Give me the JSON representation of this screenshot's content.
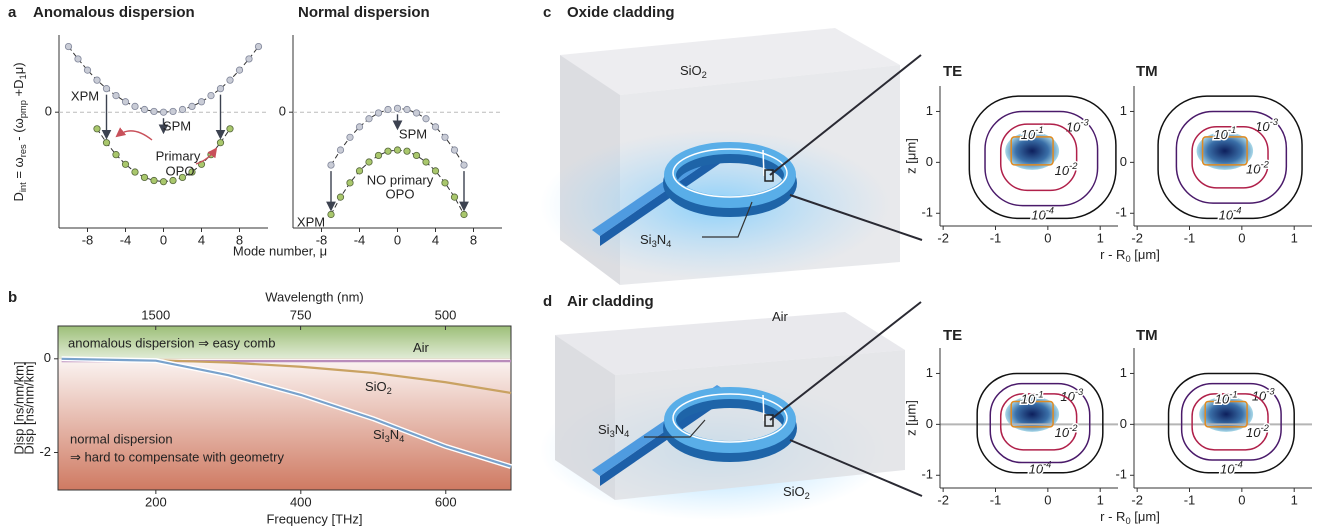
{
  "panel_letters": [
    "a",
    "b",
    "c",
    "d"
  ],
  "labels": {
    "mode_number": "Mode number, μ",
    "d_int": [
      "D",
      "int",
      " = ω",
      "res",
      " - (ω",
      "pmp",
      " +D",
      "1",
      "μ)"
    ],
    "r_axis_c": [
      "r - R",
      "0",
      " [μm]"
    ],
    "r_axis_d": [
      "r - R",
      "0",
      " [μm]"
    ]
  },
  "renders": [
    {
      "title": "Oxide cladding",
      "cladding": [
        "SiO",
        "2"
      ],
      "core": [
        "Si",
        "3",
        "N",
        "4"
      ]
    },
    {
      "title": "Air cladding",
      "cladding": [
        "Air"
      ],
      "core": [
        "Si",
        "3",
        "N",
        "4"
      ],
      "substrate": [
        "SiO",
        "2"
      ]
    }
  ],
  "chart_data": [
    {
      "type": "line",
      "title": "Anomalous dispersion",
      "xlim": [
        -11,
        11
      ],
      "xticks": [
        -8,
        -4,
        0,
        4,
        8
      ],
      "ylim": [
        -3,
        2
      ],
      "yticks": [
        0
      ],
      "grid": true,
      "series": [
        {
          "color": "#c9ccd6",
          "edge": "#80869a",
          "dashed": true,
          "markers": true,
          "x": [
            -10,
            -9,
            -8,
            -7,
            -6,
            -5,
            -4,
            -3,
            -2,
            -1,
            0,
            1,
            2,
            3,
            4,
            5,
            6,
            7,
            8,
            9,
            10
          ],
          "values": [
            1.7,
            1.38,
            1.09,
            0.83,
            0.61,
            0.43,
            0.27,
            0.15,
            0.07,
            0.02,
            0,
            0.02,
            0.07,
            0.15,
            0.27,
            0.43,
            0.61,
            0.83,
            1.09,
            1.38,
            1.7
          ]
        },
        {
          "color": "#a9c76c",
          "edge": "#55663c",
          "dashed": true,
          "markers": true,
          "x": [
            -7,
            -6,
            -5,
            -4,
            -3,
            -2,
            -1,
            0,
            1,
            2,
            3,
            4,
            5,
            6,
            7
          ],
          "values": [
            -0.43,
            -0.79,
            -1.1,
            -1.35,
            -1.55,
            -1.69,
            -1.77,
            -1.8,
            -1.77,
            -1.69,
            -1.55,
            -1.35,
            -1.1,
            -0.79,
            -0.43
          ]
        }
      ],
      "annotations": [
        "XPM",
        "SPM",
        "Primary",
        "OPO"
      ]
    },
    {
      "type": "line",
      "title": "Normal dispersion",
      "xlim": [
        -11,
        11
      ],
      "xticks": [
        -8,
        -4,
        0,
        4,
        8
      ],
      "ylim": [
        -3,
        2
      ],
      "yticks": [
        0
      ],
      "grid": true,
      "series": [
        {
          "color": "#c9ccd6",
          "edge": "#80869a",
          "dashed": true,
          "markers": true,
          "x": [
            -7,
            -6,
            -5,
            -4,
            -3,
            -2,
            -1,
            0,
            1,
            2,
            3,
            4,
            5,
            6,
            7
          ],
          "values": [
            -1.37,
            -0.98,
            -0.65,
            -0.38,
            -0.17,
            -0.02,
            0.07,
            0.1,
            0.07,
            -0.02,
            -0.17,
            -0.38,
            -0.65,
            -0.98,
            -1.37
          ]
        },
        {
          "color": "#a9c76c",
          "edge": "#55663c",
          "dashed": true,
          "markers": true,
          "x": [
            -7,
            -6,
            -5,
            -4,
            -3,
            -2,
            -1,
            0,
            1,
            2,
            3,
            4,
            5,
            6,
            7
          ],
          "values": [
            -2.65,
            -2.2,
            -1.83,
            -1.52,
            -1.29,
            -1.12,
            -1.01,
            -0.98,
            -1.01,
            -1.12,
            -1.29,
            -1.52,
            -1.83,
            -2.2,
            -2.65
          ]
        }
      ],
      "annotations": [
        "XPM",
        "SPM",
        "NO primary",
        "OPO"
      ]
    },
    {
      "type": "line",
      "x_label": "Frequency [THz]",
      "y_label": "Disp [ns/nm/km]",
      "top_label": "Wavelength (nm)",
      "top_ticks": [
        1500,
        750,
        500
      ],
      "xlim": [
        65,
        690
      ],
      "xticks": [
        200,
        400,
        600
      ],
      "ylim": [
        -2.8,
        0.7
      ],
      "yticks": [
        0,
        -2
      ],
      "frame": true,
      "anomalous_color": "#9dbf78",
      "normal_color": "#cf7a62",
      "series": [
        {
          "name": [
            "Air"
          ],
          "color": "#b98cbb",
          "x": [
            70,
            200,
            300,
            400,
            500,
            600,
            690
          ],
          "values": [
            -0.05,
            -0.05,
            -0.05,
            -0.05,
            -0.05,
            -0.05,
            -0.05
          ]
        },
        {
          "name": [
            "SiO",
            "2"
          ],
          "color": "#c9a262",
          "x": [
            70,
            200,
            300,
            400,
            500,
            600,
            690
          ],
          "values": [
            0,
            -0.03,
            -0.08,
            -0.17,
            -0.3,
            -0.5,
            -0.73
          ]
        },
        {
          "name": [
            "Si",
            "3",
            "N",
            "4"
          ],
          "color": "#79a2cc",
          "outline": "#ffffff",
          "x": [
            70,
            200,
            300,
            400,
            500,
            600,
            690
          ],
          "values": [
            0,
            -0.04,
            -0.35,
            -0.77,
            -1.28,
            -1.87,
            -2.3
          ]
        }
      ],
      "annotations": [
        "anomalous dispersion ⇒ easy comb",
        "normal dispersion",
        "⇒ hard to compensate with geometry"
      ]
    },
    {
      "type": "contour",
      "title": "TE",
      "y_label": "z [μm]",
      "xlim": [
        -2.06,
        1.34
      ],
      "xticks": [
        -2,
        -1,
        0,
        1
      ],
      "ylim": [
        -1.25,
        1.5
      ],
      "yticks": [
        1,
        0,
        -1
      ],
      "contours": [
        {
          "level": 0.0001,
          "label": [
            "10",
            "-4"
          ],
          "color": "#111111",
          "r": [
            -1.5,
            1.3
          ],
          "z": [
            -1.1,
            1.3
          ]
        },
        {
          "level": 0.001,
          "label": [
            "10",
            "-3"
          ],
          "color": "#4a1a6a",
          "r": [
            -1.2,
            0.95
          ],
          "z": [
            -0.85,
            1.0
          ]
        },
        {
          "level": 0.01,
          "label": [
            "10",
            "-2"
          ],
          "color": "#b0204a",
          "r": [
            -0.9,
            0.55
          ],
          "z": [
            -0.55,
            0.75
          ]
        },
        {
          "level": 0.1,
          "label": [
            "10",
            "-1"
          ],
          "color": "#e08a20",
          "r": [
            -0.7,
            0.1
          ],
          "z": [
            -0.05,
            0.5
          ]
        }
      ]
    },
    {
      "type": "contour",
      "title": "TM",
      "xlim": [
        -2.06,
        1.34
      ],
      "xticks": [
        -2,
        -1,
        0,
        1
      ],
      "ylim": [
        -1.25,
        1.5
      ],
      "yticks": [
        1,
        0,
        -1
      ],
      "contours": [
        {
          "level": 0.0001,
          "label": [
            "10",
            "-4"
          ],
          "color": "#111111",
          "r": [
            -1.6,
            1.15
          ],
          "z": [
            -1.1,
            1.3
          ]
        },
        {
          "level": 0.001,
          "label": [
            "10",
            "-3"
          ],
          "color": "#4a1a6a",
          "r": [
            -1.25,
            0.85
          ],
          "z": [
            -0.8,
            1.0
          ]
        },
        {
          "level": 0.01,
          "label": [
            "10",
            "-2"
          ],
          "color": "#b0204a",
          "r": [
            -0.95,
            0.5
          ],
          "z": [
            -0.5,
            0.7
          ]
        },
        {
          "level": 0.1,
          "label": [
            "10",
            "-1"
          ],
          "color": "#e08a20",
          "r": [
            -0.75,
            0.1
          ],
          "z": [
            -0.05,
            0.5
          ]
        }
      ]
    },
    {
      "type": "contour",
      "title": "TE",
      "y_label": "z [μm]",
      "xlim": [
        -2.06,
        1.34
      ],
      "xticks": [
        -2,
        -1,
        0,
        1
      ],
      "ylim": [
        -1.25,
        1.5
      ],
      "yticks": [
        1,
        0,
        -1
      ],
      "substrate": true,
      "contours": [
        {
          "level": 0.0001,
          "label": [
            "10",
            "-4"
          ],
          "color": "#111111",
          "r": [
            -1.35,
            1.05
          ],
          "z": [
            -0.95,
            1.0
          ]
        },
        {
          "level": 0.001,
          "label": [
            "10",
            "-3"
          ],
          "color": "#4a1a6a",
          "r": [
            -1.1,
            0.8
          ],
          "z": [
            -0.75,
            0.8
          ]
        },
        {
          "level": 0.01,
          "label": [
            "10",
            "-2"
          ],
          "color": "#b0204a",
          "r": [
            -0.9,
            0.55
          ],
          "z": [
            -0.5,
            0.6
          ]
        },
        {
          "level": 0.1,
          "label": [
            "10",
            "-1"
          ],
          "color": "#e08a20",
          "r": [
            -0.7,
            0.1
          ],
          "z": [
            -0.05,
            0.45
          ]
        }
      ]
    },
    {
      "type": "contour",
      "title": "TM",
      "xlim": [
        -2.06,
        1.34
      ],
      "xticks": [
        -2,
        -1,
        0,
        1
      ],
      "ylim": [
        -1.25,
        1.5
      ],
      "yticks": [
        1,
        0,
        -1
      ],
      "substrate": true,
      "contours": [
        {
          "level": 0.0001,
          "label": [
            "10",
            "-4"
          ],
          "color": "#111111",
          "r": [
            -1.4,
            1.0
          ],
          "z": [
            -0.95,
            1.0
          ]
        },
        {
          "level": 0.001,
          "label": [
            "10",
            "-3"
          ],
          "color": "#4a1a6a",
          "r": [
            -1.15,
            0.75
          ],
          "z": [
            -0.7,
            0.8
          ]
        },
        {
          "level": 0.01,
          "label": [
            "10",
            "-2"
          ],
          "color": "#b0204a",
          "r": [
            -0.95,
            0.5
          ],
          "z": [
            -0.5,
            0.6
          ]
        },
        {
          "level": 0.1,
          "label": [
            "10",
            "-1"
          ],
          "color": "#e08a20",
          "r": [
            -0.7,
            0.1
          ],
          "z": [
            -0.05,
            0.45
          ]
        }
      ]
    }
  ]
}
